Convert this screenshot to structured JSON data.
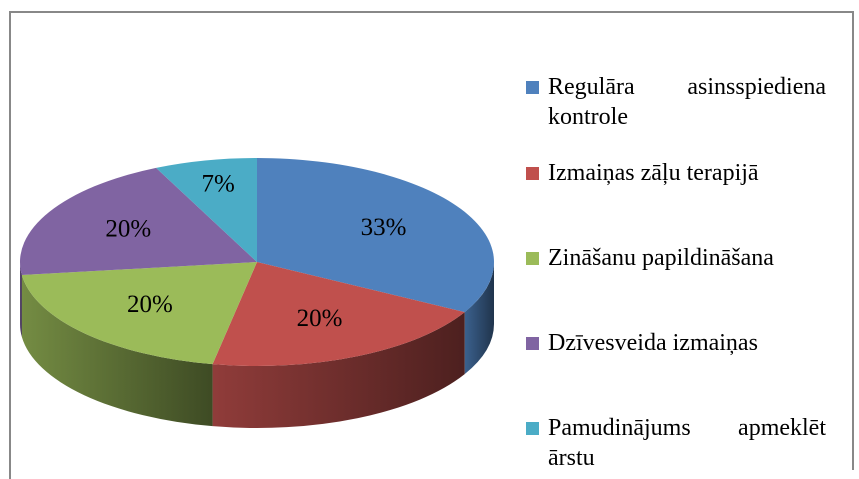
{
  "chart_data": {
    "type": "pie",
    "categories": [
      "Regulāra asinsspiediena kontrole",
      "Izmaiņas zāļu terapijā",
      "Zināšanu papildināšana",
      "Dzīvesveida izmaiņas",
      "Pamudinājums apmeklēt ārstu"
    ],
    "values": [
      33,
      20,
      20,
      20,
      7
    ],
    "value_labels": [
      "33%",
      "20%",
      "20%",
      "20%",
      "7%"
    ],
    "colors": [
      "#4f81bd",
      "#c0504d",
      "#9bbb59",
      "#8064a2",
      "#4bacc6"
    ],
    "legend": "right"
  }
}
